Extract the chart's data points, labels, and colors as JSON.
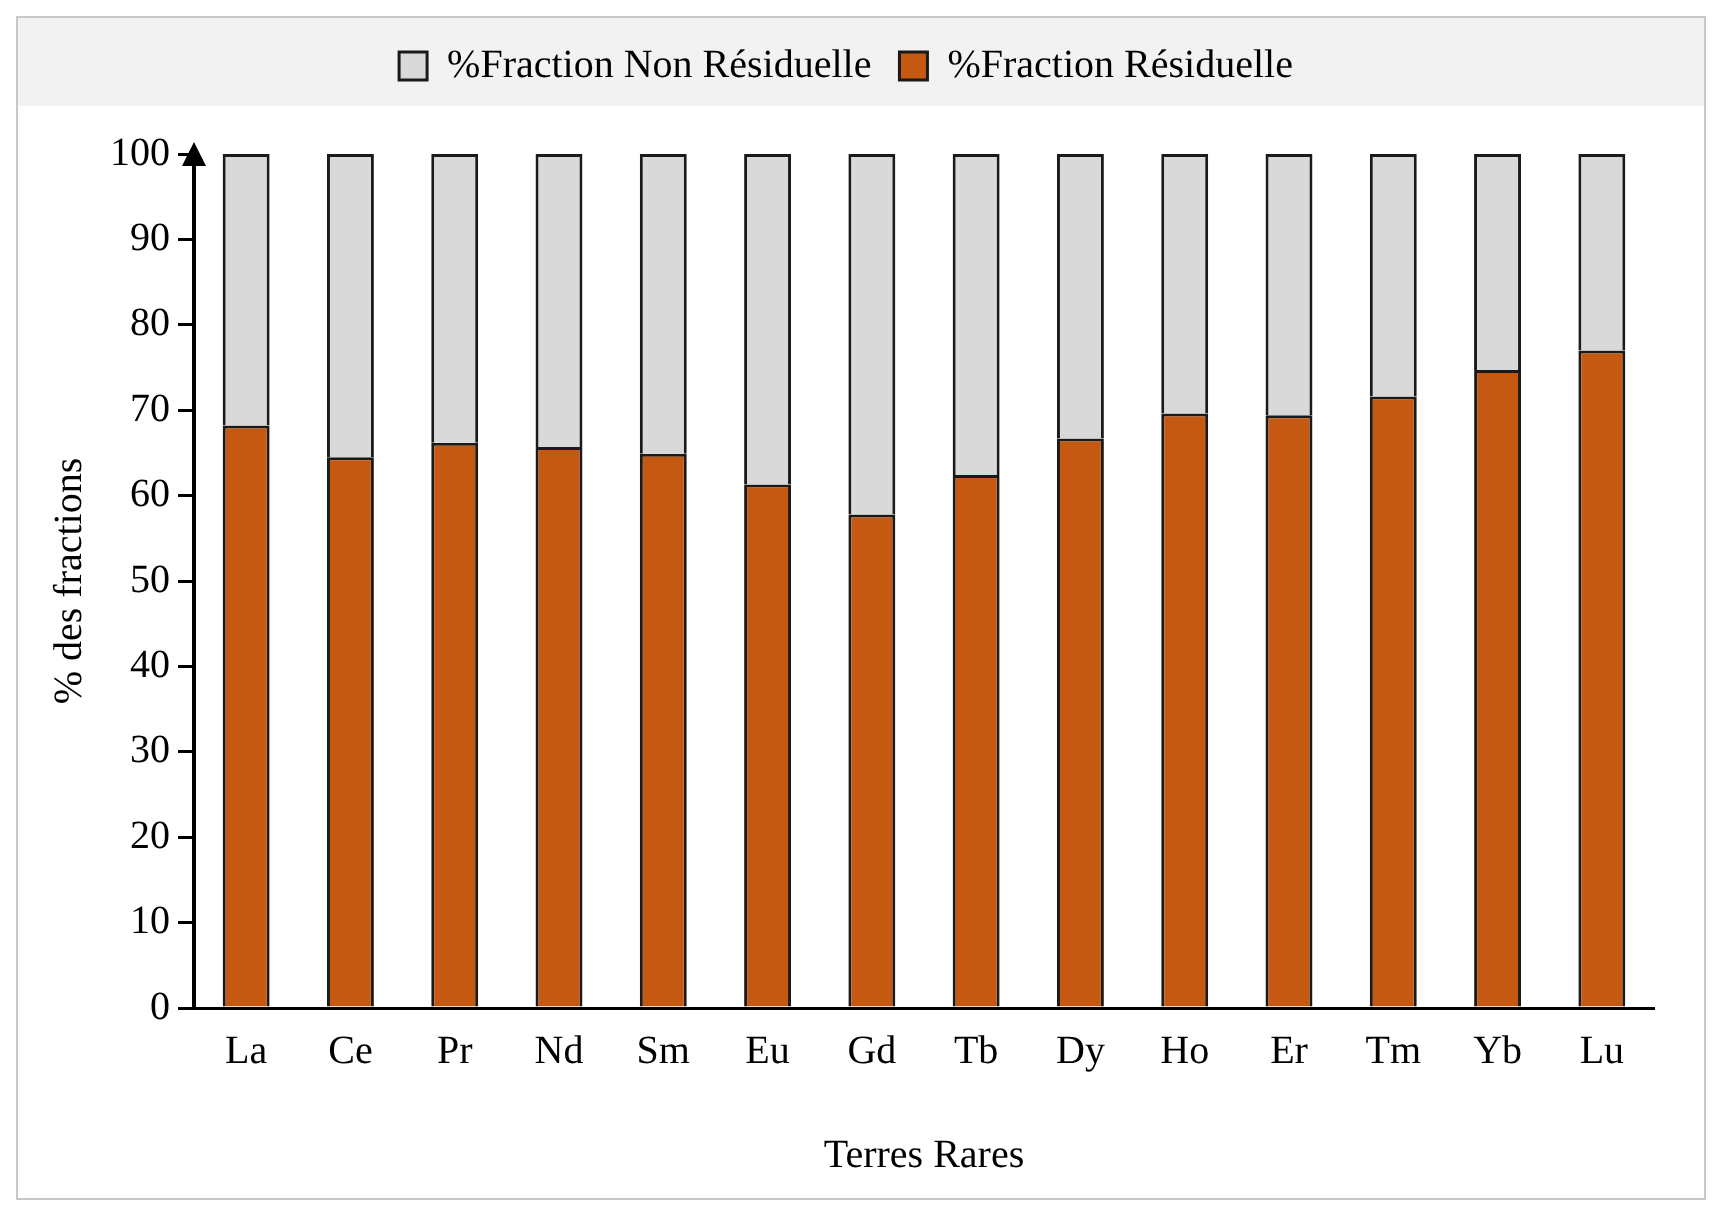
{
  "chart_data": {
    "type": "bar",
    "stacked": true,
    "xlabel": "Terres Rares",
    "ylabel": "% des fractions",
    "categories": [
      "La",
      "Ce",
      "Pr",
      "Nd",
      "Sm",
      "Eu",
      "Gd",
      "Tb",
      "Dy",
      "Ho",
      "Er",
      "Tm",
      "Yb",
      "Lu"
    ],
    "series": [
      {
        "name": "%Fraction Résiduelle",
        "color": "#c65911",
        "values": [
          68.2,
          64.5,
          66.2,
          65.7,
          64.9,
          61.3,
          57.8,
          62.4,
          66.7,
          69.6,
          69.4,
          71.6,
          74.7,
          77.0
        ]
      },
      {
        "name": "%Fraction Non Résiduelle",
        "color": "#d9d9d9",
        "values": [
          31.8,
          35.5,
          33.8,
          34.3,
          35.1,
          38.7,
          42.2,
          37.6,
          33.3,
          30.4,
          30.6,
          28.4,
          25.3,
          23.0
        ]
      }
    ],
    "ylim": [
      0,
      100
    ],
    "yticks": [
      0,
      10,
      20,
      30,
      40,
      50,
      60,
      70,
      80,
      90,
      100
    ],
    "grid": false,
    "legend": "top"
  }
}
